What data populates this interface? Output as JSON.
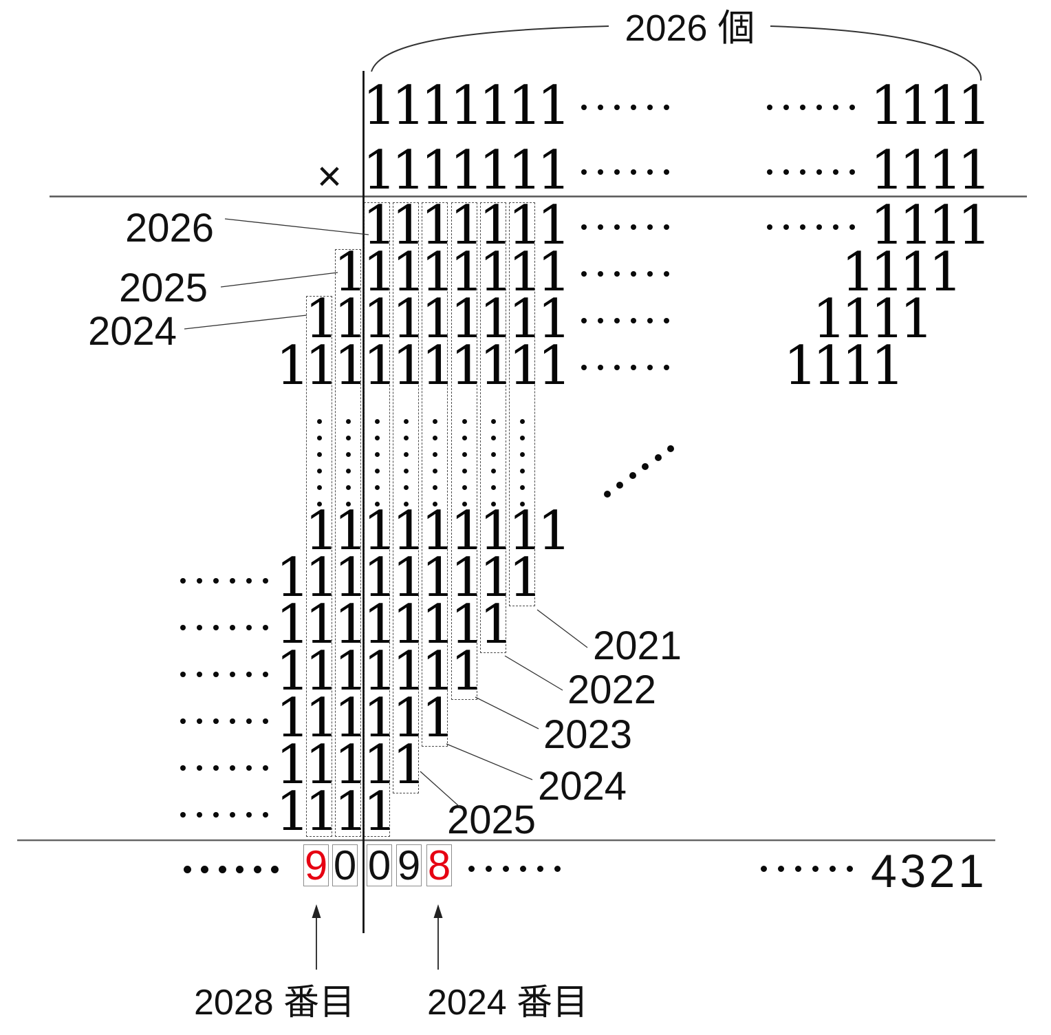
{
  "brace": {
    "label": "2026 個"
  },
  "multiply_sign": "×",
  "colors": {
    "highlight_red": "#e60012",
    "box_border": "#8c8c8c",
    "dash_gray": "#4a4a4a"
  },
  "grid_rows": [
    {
      "id": "multiplicand",
      "ones": 7,
      "start_col": "c1",
      "mid_dots": true,
      "right_dots": true,
      "tail_ones": 4,
      "tail_end": "R1"
    },
    {
      "id": "multiplier",
      "ones": 7,
      "start_col": "c1",
      "mid_dots": true,
      "right_dots": true,
      "tail_ones": 4,
      "tail_end": "R1"
    },
    {
      "id": "pp1",
      "ones": 7,
      "start_col": "c1",
      "mid_dots": true,
      "right_dots": true,
      "tail_ones": 4,
      "tail_end": "R1"
    },
    {
      "id": "pp2",
      "ones": 8,
      "start_col": "l1",
      "mid_dots": true,
      "right_dots": false,
      "tail_ones": 4,
      "tail_end": "R2"
    },
    {
      "id": "pp3",
      "ones": 9,
      "start_col": "l2",
      "mid_dots": true,
      "right_dots": false,
      "tail_ones": 4,
      "tail_end": "R3"
    },
    {
      "id": "pp4",
      "ones": 10,
      "start_col": "l3",
      "mid_dots": true,
      "right_dots": false,
      "tail_ones": 4,
      "tail_end": "R4"
    },
    {
      "id": "ppk1",
      "ones": 9,
      "start_col": "l2",
      "left_dots": false
    },
    {
      "id": "ppk2",
      "ones": 9,
      "start_col": "l3",
      "left_dots": true
    },
    {
      "id": "ppk3",
      "ones": 8,
      "start_col": "l3",
      "left_dots": true
    },
    {
      "id": "ppk4",
      "ones": 7,
      "start_col": "l3",
      "left_dots": true
    },
    {
      "id": "ppk5",
      "ones": 6,
      "start_col": "l3",
      "left_dots": true
    },
    {
      "id": "ppk6",
      "ones": 5,
      "start_col": "l3",
      "left_dots": true
    },
    {
      "id": "ppk7",
      "ones": 4,
      "start_col": "l3",
      "left_dots": true
    }
  ],
  "column_boxes": [
    {
      "label": "2026",
      "side": "left",
      "col": "c1",
      "top_row": "pp1",
      "end_row": "full"
    },
    {
      "label": "2025",
      "side": "left",
      "col": "l1",
      "top_row": "pp2",
      "end_row": "full"
    },
    {
      "label": "2024",
      "side": "left",
      "col": "l2",
      "top_row": "pp3",
      "end_row": "full"
    },
    {
      "label": "2021",
      "side": "right",
      "col": "c6",
      "top_row": "pp1",
      "end_row": "ppk2"
    },
    {
      "label": "2022",
      "side": "right",
      "col": "c5",
      "top_row": "pp1",
      "end_row": "ppk3"
    },
    {
      "label": "2023",
      "side": "right",
      "col": "c4",
      "top_row": "pp1",
      "end_row": "ppk4"
    },
    {
      "label": "2024",
      "side": "right",
      "col": "c3",
      "top_row": "pp1",
      "end_row": "ppk5"
    },
    {
      "label": "2025",
      "side": "right",
      "col": "c2",
      "top_row": "pp1",
      "end_row": "ppk6"
    }
  ],
  "result_row": {
    "left_dots": true,
    "boxed_digits": [
      {
        "value": "9",
        "red": true
      },
      {
        "value": "0",
        "red": false
      },
      {
        "value": "0",
        "red": false
      },
      {
        "value": "9",
        "red": false
      },
      {
        "value": "8",
        "red": true
      }
    ],
    "mid_dots": true,
    "right_dots": true,
    "tail": "4321"
  },
  "annotations": [
    {
      "text": "2028 番目",
      "target_digit": "9"
    },
    {
      "text": "2024 番目",
      "target_digit": "8"
    }
  ]
}
